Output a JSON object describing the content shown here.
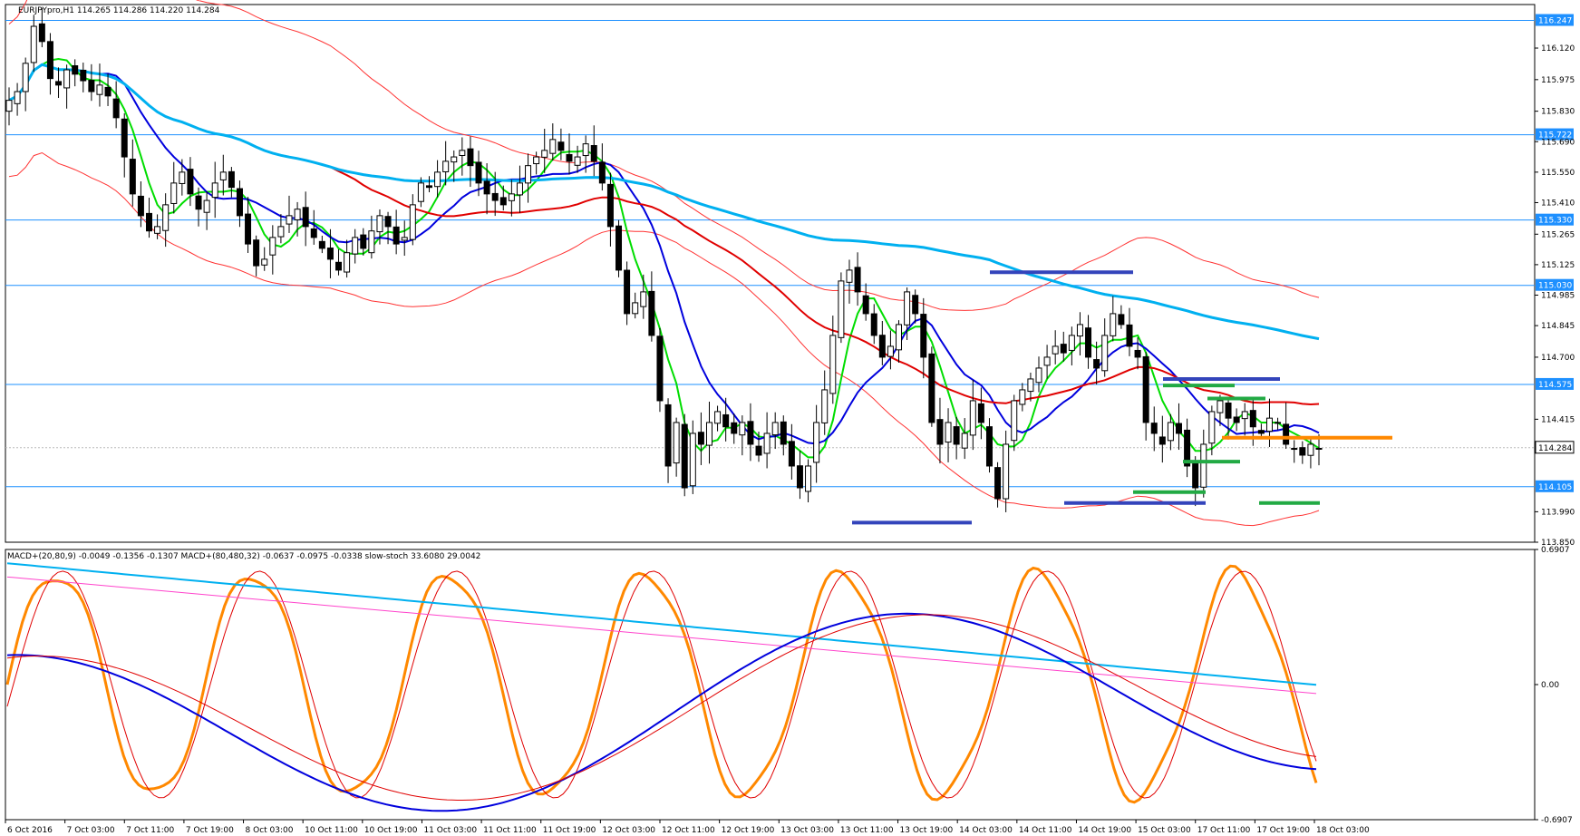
{
  "main_panel": {
    "header": "EURJPYpro,H1  114.265 114.286 114.220 114.284",
    "price_ticks": [
      "116.120",
      "115.975",
      "115.830",
      "115.690",
      "115.550",
      "115.410",
      "115.265",
      "115.125",
      "114.985",
      "114.845",
      "114.700",
      "114.415",
      "113.990",
      "113.850"
    ],
    "hline_labels": [
      "116.247",
      "115.722",
      "115.330",
      "115.030",
      "114.575",
      "114.105"
    ],
    "current_price_label": "114.284",
    "hline_color": "#1e90ff",
    "current_tag_color": "#ffffff"
  },
  "sub_panel": {
    "header": "MACD+(20,80,9) -0.0049 -0.1356 -0.1307  MACD+(80,480,32) -0.0637 -0.0975 -0.0338  slow-stoch 33.6080 29.0042",
    "ticks": [
      "0.6907",
      "0.00",
      "-0.6907"
    ]
  },
  "time_axis": [
    "6 Oct 2016",
    "7 Oct 03:00",
    "7 Oct 11:00",
    "7 Oct 19:00",
    "8 Oct 03:00",
    "10 Oct 11:00",
    "10 Oct 19:00",
    "11 Oct 03:00",
    "11 Oct 11:00",
    "11 Oct 19:00",
    "12 Oct 03:00",
    "12 Oct 11:00",
    "12 Oct 19:00",
    "13 Oct 03:00",
    "13 Oct 11:00",
    "13 Oct 19:00",
    "14 Oct 03:00",
    "14 Oct 11:00",
    "14 Oct 19:00",
    "15 Oct 03:00",
    "17 Oct 11:00",
    "17 Oct 19:00",
    "18 Oct 03:00"
  ],
  "chart_data": [
    {
      "type": "candlestick",
      "symbol": "EURJPYpro",
      "timeframe": "H1",
      "title": "EURJPYpro,H1",
      "ohlc_last": {
        "open": 114.265,
        "high": 114.286,
        "low": 114.22,
        "close": 114.284
      },
      "ylim": [
        113.85,
        116.32
      ],
      "horizontal_levels": [
        116.247,
        115.722,
        115.33,
        115.03,
        114.575,
        114.105
      ],
      "close_path": [
        115.88,
        115.92,
        116.05,
        116.22,
        116.15,
        115.98,
        115.95,
        116.02,
        116.0,
        115.97,
        115.92,
        115.95,
        115.9,
        115.8,
        115.62,
        115.45,
        115.35,
        115.28,
        115.3,
        115.4,
        115.5,
        115.55,
        115.45,
        115.38,
        115.42,
        115.5,
        115.55,
        115.48,
        115.35,
        115.22,
        115.12,
        115.15,
        115.25,
        115.3,
        115.35,
        115.38,
        115.3,
        115.25,
        115.2,
        115.15,
        115.1,
        115.18,
        115.25,
        115.2,
        115.28,
        115.35,
        115.3,
        115.22,
        115.25,
        115.4,
        115.5,
        115.48,
        115.55,
        115.6,
        115.62,
        115.65,
        115.58,
        115.5,
        115.45,
        115.42,
        115.4,
        115.45,
        115.5,
        115.58,
        115.62,
        115.65,
        115.7,
        115.65,
        115.6,
        115.62,
        115.68,
        115.6,
        115.5,
        115.3,
        115.1,
        114.9,
        114.95,
        115.0,
        114.8,
        114.5,
        114.2,
        114.4,
        114.1,
        114.35,
        114.3,
        114.4,
        114.45,
        114.38,
        114.35,
        114.4,
        114.3,
        114.25,
        114.35,
        114.4,
        114.3,
        114.2,
        114.1,
        114.2,
        114.4,
        114.55,
        114.8,
        115.05,
        115.1,
        115.0,
        114.9,
        114.8,
        114.7,
        114.75,
        114.85,
        115.0,
        114.9,
        114.7,
        114.4,
        114.3,
        114.4,
        114.3,
        114.35,
        114.5,
        114.4,
        114.2,
        114.05,
        114.3,
        114.5,
        114.55,
        114.6,
        114.65,
        114.7,
        114.75,
        114.72,
        114.8,
        114.85,
        114.7,
        114.65,
        114.8,
        114.9,
        114.85,
        114.75,
        114.7,
        114.4,
        114.35,
        114.3,
        114.4,
        114.35,
        114.2,
        114.1,
        114.3,
        114.45,
        114.5,
        114.42,
        114.4,
        114.45,
        114.38,
        114.35,
        114.42,
        114.4,
        114.3,
        114.28,
        114.25,
        114.3,
        114.28
      ],
      "indicators": [
        {
          "color": "#00dd00",
          "style": "fast moving average"
        },
        {
          "color": "#0000dd",
          "style": "moving average"
        },
        {
          "color": "#e00000",
          "style": "slow moving average"
        },
        {
          "color": "#00b0f0",
          "style": "long moving average"
        },
        {
          "color": "#ff3333",
          "style": "envelope bands"
        }
      ],
      "markers": [
        {
          "color": "#3344bb",
          "level": 115.09
        },
        {
          "color": "#3344bb",
          "level": 113.94
        },
        {
          "color": "#3344bb",
          "level": 114.03
        },
        {
          "color": "#3344bb",
          "level": 114.6
        },
        {
          "color": "#22aa44",
          "level": 114.57
        },
        {
          "color": "#22aa44",
          "level": 114.51
        },
        {
          "color": "#22aa44",
          "level": 114.22
        },
        {
          "color": "#22aa44",
          "level": 114.08
        },
        {
          "color": "#22aa44",
          "level": 114.03
        },
        {
          "color": "#ff8800",
          "level": 114.33
        }
      ]
    },
    {
      "type": "line",
      "title": "MACD+(20,80,9) -0.0049 -0.1356 -0.1307  MACD+(80,480,32) -0.0637 -0.0975 -0.0338  slow-stoch 33.6080 29.0042",
      "ylim": [
        -0.6907,
        0.6907
      ],
      "series": [
        {
          "name": "MACD+(20,80,9)",
          "color": "#0000dd"
        },
        {
          "name": "MACD+(80,480,32)",
          "color": "#00b0f0"
        },
        {
          "name": "slow-stoch",
          "color": "#ff8800"
        }
      ],
      "values_last": {
        "macd_fast": [
          -0.0049,
          -0.1356,
          -0.1307
        ],
        "macd_slow": [
          -0.0637,
          -0.0975,
          -0.0338
        ],
        "stoch": [
          33.608,
          29.0042
        ]
      }
    }
  ]
}
